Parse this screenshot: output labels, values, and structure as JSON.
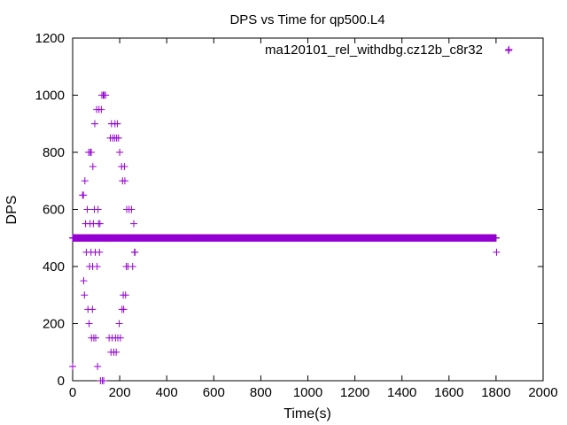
{
  "chart_data": {
    "type": "scatter",
    "title": "DPS vs Time for qp500.L4",
    "xlabel": "Time(s)",
    "ylabel": "DPS",
    "xlim": [
      0,
      2000
    ],
    "ylim": [
      0,
      1200
    ],
    "xticks": [
      "0",
      "200",
      "400",
      "600",
      "800",
      "1000",
      "1200",
      "1400",
      "1600",
      "1800",
      "2000"
    ],
    "yticks": [
      "0",
      "200",
      "400",
      "600",
      "800",
      "1000",
      "1200"
    ],
    "grid": false,
    "legend_position": "top-right",
    "marker": "+",
    "series": [
      {
        "name": "ma120101_rel_withdbg.cz12b_c8r32",
        "color": "#9400d3",
        "points": [
          [
            0,
            50
          ],
          [
            5,
            500
          ],
          [
            12,
            500
          ],
          [
            20,
            500
          ],
          [
            28,
            500
          ],
          [
            36,
            500
          ],
          [
            42,
            650
          ],
          [
            46,
            650
          ],
          [
            47,
            350
          ],
          [
            50,
            300
          ],
          [
            52,
            700
          ],
          [
            55,
            550
          ],
          [
            58,
            450
          ],
          [
            62,
            600
          ],
          [
            65,
            250
          ],
          [
            66,
            500
          ],
          [
            68,
            800
          ],
          [
            70,
            200
          ],
          [
            72,
            400
          ],
          [
            74,
            550
          ],
          [
            75,
            800
          ],
          [
            78,
            450
          ],
          [
            79,
            800
          ],
          [
            80,
            150
          ],
          [
            82,
            500
          ],
          [
            84,
            250
          ],
          [
            85,
            400
          ],
          [
            86,
            750
          ],
          [
            88,
            550
          ],
          [
            90,
            150
          ],
          [
            92,
            600
          ],
          [
            94,
            900
          ],
          [
            96,
            450
          ],
          [
            98,
            150
          ],
          [
            100,
            500
          ],
          [
            102,
            950
          ],
          [
            104,
            400
          ],
          [
            106,
            50
          ],
          [
            108,
            600
          ],
          [
            110,
            550
          ],
          [
            112,
            950
          ],
          [
            114,
            450
          ],
          [
            116,
            550
          ],
          [
            118,
            0
          ],
          [
            120,
            500
          ],
          [
            122,
            950
          ],
          [
            124,
            1000
          ],
          [
            126,
            0
          ],
          [
            128,
            500
          ],
          [
            130,
            1000
          ],
          [
            132,
            0
          ],
          [
            134,
            1000
          ],
          [
            136,
            500
          ],
          [
            140,
            1000
          ],
          [
            145,
            500
          ],
          [
            150,
            500
          ],
          [
            155,
            150
          ],
          [
            160,
            850
          ],
          [
            163,
            100
          ],
          [
            165,
            900
          ],
          [
            168,
            150
          ],
          [
            170,
            850
          ],
          [
            172,
            500
          ],
          [
            175,
            100
          ],
          [
            178,
            850
          ],
          [
            180,
            900
          ],
          [
            182,
            150
          ],
          [
            185,
            100
          ],
          [
            187,
            850
          ],
          [
            190,
            900
          ],
          [
            192,
            150
          ],
          [
            195,
            850
          ],
          [
            198,
            200
          ],
          [
            200,
            800
          ],
          [
            203,
            150
          ],
          [
            205,
            500
          ],
          [
            208,
            750
          ],
          [
            210,
            250
          ],
          [
            212,
            700
          ],
          [
            215,
            300
          ],
          [
            217,
            250
          ],
          [
            220,
            750
          ],
          [
            222,
            700
          ],
          [
            225,
            300
          ],
          [
            228,
            400
          ],
          [
            230,
            600
          ],
          [
            235,
            400
          ],
          [
            240,
            600
          ],
          [
            245,
            500
          ],
          [
            250,
            600
          ],
          [
            255,
            400
          ],
          [
            260,
            550
          ],
          [
            263,
            450
          ],
          [
            265,
            450
          ],
          [
            1800,
            500
          ],
          [
            1802,
            450
          ],
          [
            1855,
            1160
          ]
        ]
      }
    ]
  }
}
